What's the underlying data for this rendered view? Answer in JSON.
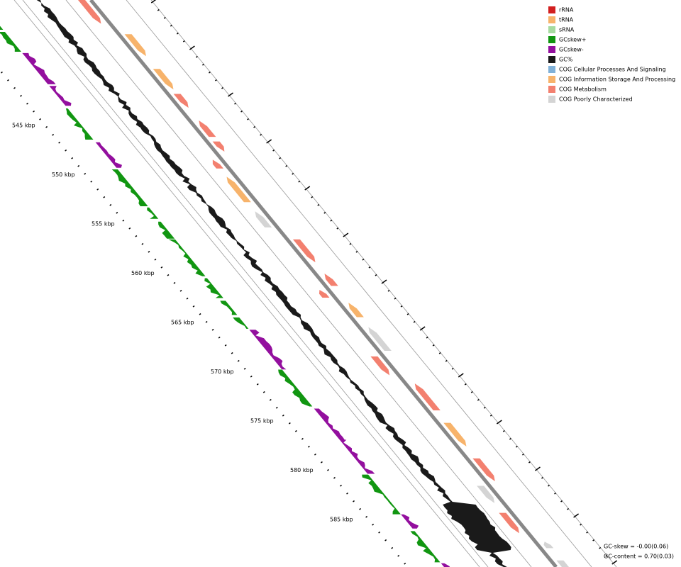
{
  "legend": [
    {
      "label": "rRNA",
      "color": "#d21f1f"
    },
    {
      "label": "tRNA",
      "color": "#f7b36b"
    },
    {
      "label": "sRNA",
      "color": "#a6dba0"
    },
    {
      "label": "GCskew+",
      "color": "#119611"
    },
    {
      "label": "GCskew-",
      "color": "#930f9e"
    },
    {
      "label": "GC%",
      "color": "#1a1a1a"
    },
    {
      "label": "COG Cellular Processes And Signaling",
      "color": "#80b1d8"
    },
    {
      "label": "COG Information Storage And Processing",
      "color": "#f7b36b"
    },
    {
      "label": "COG Metabolism",
      "color": "#f3806f"
    },
    {
      "label": "COG Poorly Characterized",
      "color": "#d4d4d4"
    }
  ],
  "scale_labels": [
    "545 kbp",
    "550 kbp",
    "555 kbp",
    "560 kbp",
    "565 kbp",
    "570 kbp",
    "575 kbp",
    "580 kbp",
    "585 kbp"
  ],
  "stats": [
    "GC-skew = -0.00(0.06)",
    "GC-content = 0.70(0.03)"
  ]
}
